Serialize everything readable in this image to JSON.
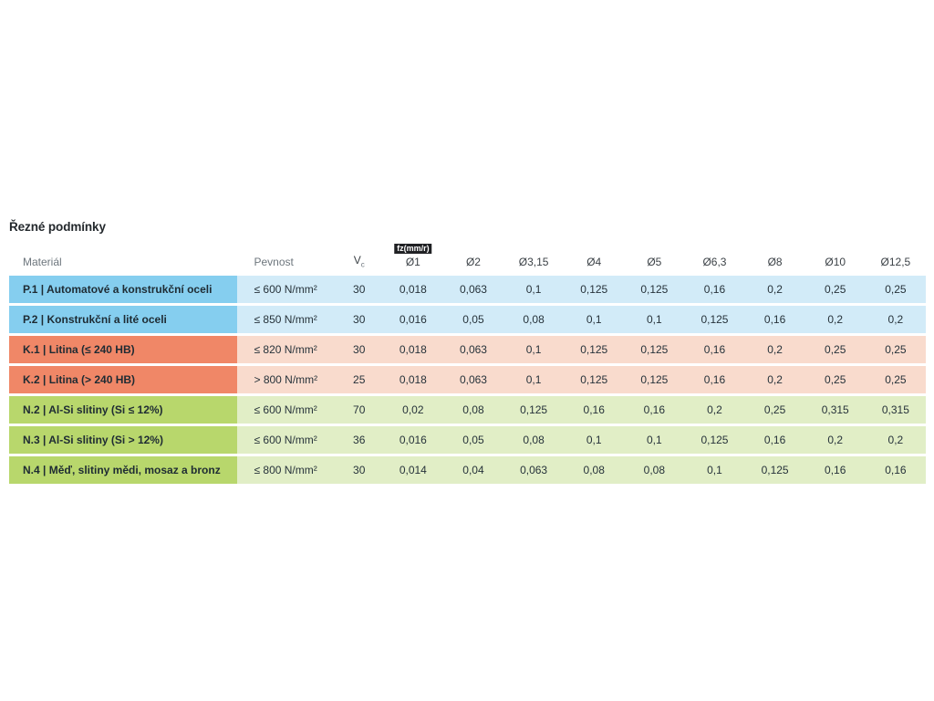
{
  "title": "Řezné podmínky",
  "table": {
    "badge": "fz(mm/r)",
    "headers": {
      "material": "Materiál",
      "pevnost": "Pevnost",
      "vc_main": "V",
      "vc_sub": "c",
      "diameters": [
        "Ø1",
        "Ø2",
        "Ø3,15",
        "Ø4",
        "Ø5",
        "Ø6,3",
        "Ø8",
        "Ø10",
        "Ø12,5"
      ]
    },
    "colors": {
      "P": {
        "label": "#85CEEF",
        "body": "#D2EBF8"
      },
      "K": {
        "label": "#F08767",
        "body": "#F9DBCD"
      },
      "N": {
        "label": "#B8D76C",
        "body": "#E1EEC6"
      }
    },
    "rows": [
      {
        "group": "P",
        "label": "P.1 | Automatové a konstrukční oceli",
        "pevnost": "≤ 600 N/mm²",
        "vc": "30",
        "values": [
          "0,018",
          "0,063",
          "0,1",
          "0,125",
          "0,125",
          "0,16",
          "0,2",
          "0,25",
          "0,25"
        ]
      },
      {
        "group": "P",
        "label": "P.2 | Konstrukční a lité oceli",
        "pevnost": "≤ 850 N/mm²",
        "vc": "30",
        "values": [
          "0,016",
          "0,05",
          "0,08",
          "0,1",
          "0,1",
          "0,125",
          "0,16",
          "0,2",
          "0,2"
        ]
      },
      {
        "group": "K",
        "label": "K.1 | Litina (≤ 240 HB)",
        "pevnost": "≤ 820 N/mm²",
        "vc": "30",
        "values": [
          "0,018",
          "0,063",
          "0,1",
          "0,125",
          "0,125",
          "0,16",
          "0,2",
          "0,25",
          "0,25"
        ]
      },
      {
        "group": "K",
        "label": "K.2 | Litina (> 240 HB)",
        "pevnost": "> 800 N/mm²",
        "vc": "25",
        "values": [
          "0,018",
          "0,063",
          "0,1",
          "0,125",
          "0,125",
          "0,16",
          "0,2",
          "0,25",
          "0,25"
        ]
      },
      {
        "group": "N",
        "label": "N.2 | Al-Si slitiny (Si ≤ 12%)",
        "pevnost": "≤ 600 N/mm²",
        "vc": "70",
        "values": [
          "0,02",
          "0,08",
          "0,125",
          "0,16",
          "0,16",
          "0,2",
          "0,25",
          "0,315",
          "0,315"
        ]
      },
      {
        "group": "N",
        "label": "N.3 | Al-Si slitiny (Si > 12%)",
        "pevnost": "≤ 600 N/mm²",
        "vc": "36",
        "values": [
          "0,016",
          "0,05",
          "0,08",
          "0,1",
          "0,1",
          "0,125",
          "0,16",
          "0,2",
          "0,2"
        ]
      },
      {
        "group": "N",
        "label": "N.4 | Měď, slitiny mědi, mosaz a bronz",
        "pevnost": "≤ 800 N/mm²",
        "vc": "30",
        "values": [
          "0,014",
          "0,04",
          "0,063",
          "0,08",
          "0,08",
          "0,1",
          "0,125",
          "0,16",
          "0,16"
        ]
      }
    ]
  }
}
